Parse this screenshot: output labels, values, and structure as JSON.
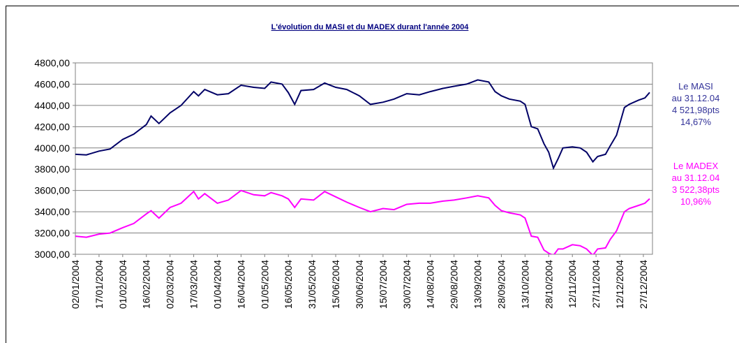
{
  "chart_data": {
    "type": "line",
    "title": "L'évolution du MASI et du MADEX durant l'année 2004",
    "x": [
      "02/01/2004",
      "09/01/2004",
      "17/01/2004",
      "24/01/2004",
      "01/02/2004",
      "08/02/2004",
      "16/02/2004",
      "19/02/2004",
      "24/02/2004",
      "02/03/2004",
      "09/03/2004",
      "17/03/2004",
      "20/03/2004",
      "24/03/2004",
      "01/04/2004",
      "08/04/2004",
      "16/04/2004",
      "24/04/2004",
      "01/05/2004",
      "05/05/2004",
      "12/05/2004",
      "16/05/2004",
      "20/05/2004",
      "24/05/2004",
      "01/06/2004",
      "08/06/2004",
      "15/06/2004",
      "22/06/2004",
      "30/06/2004",
      "07/07/2004",
      "15/07/2004",
      "22/07/2004",
      "30/07/2004",
      "07/08/2004",
      "14/08/2004",
      "22/08/2004",
      "29/08/2004",
      "06/09/2004",
      "13/09/2004",
      "20/09/2004",
      "24/09/2004",
      "28/09/2004",
      "03/10/2004",
      "10/10/2004",
      "13/10/2004",
      "17/10/2004",
      "21/10/2004",
      "25/10/2004",
      "28/10/2004",
      "31/10/2004",
      "03/11/2004",
      "06/11/2004",
      "12/11/2004",
      "17/11/2004",
      "21/11/2004",
      "25/11/2004",
      "28/11/2004",
      "03/12/2004",
      "06/12/2004",
      "10/12/2004",
      "15/12/2004",
      "18/12/2004",
      "24/12/2004",
      "28/12/2004",
      "31/12/2004"
    ],
    "series": [
      {
        "name": "MASI",
        "color": "#000066",
        "values": [
          3940,
          3935,
          3970,
          3990,
          4080,
          4130,
          4220,
          4300,
          4230,
          4330,
          4400,
          4530,
          4490,
          4550,
          4500,
          4510,
          4590,
          4570,
          4560,
          4620,
          4600,
          4520,
          4410,
          4540,
          4550,
          4610,
          4570,
          4550,
          4490,
          4410,
          4430,
          4460,
          4510,
          4500,
          4530,
          4560,
          4580,
          4600,
          4640,
          4620,
          4530,
          4490,
          4460,
          4440,
          4410,
          4200,
          4180,
          4040,
          3960,
          3810,
          3900,
          4000,
          4010,
          4000,
          3960,
          3870,
          3920,
          3940,
          4020,
          4120,
          4380,
          4410,
          4450,
          4470,
          4522
        ]
      },
      {
        "name": "MADEX",
        "color": "#ff00ff",
        "values": [
          3170,
          3160,
          3190,
          3200,
          3250,
          3290,
          3380,
          3410,
          3340,
          3440,
          3480,
          3590,
          3520,
          3570,
          3480,
          3510,
          3600,
          3560,
          3550,
          3580,
          3550,
          3520,
          3440,
          3520,
          3510,
          3590,
          3540,
          3490,
          3440,
          3400,
          3430,
          3420,
          3470,
          3480,
          3480,
          3500,
          3510,
          3530,
          3550,
          3530,
          3460,
          3410,
          3390,
          3370,
          3340,
          3170,
          3160,
          3040,
          3010,
          2990,
          3050,
          3050,
          3090,
          3080,
          3050,
          2990,
          3050,
          3060,
          3140,
          3220,
          3400,
          3430,
          3460,
          3480,
          3522
        ]
      }
    ],
    "annotations": [
      {
        "color": "#333399",
        "lines": [
          "Le MASI",
          "au 31.12.04",
          "4 521,98pts",
          "14,67%"
        ]
      },
      {
        "color": "#ff00ff",
        "lines": [
          "Le MADEX",
          "au 31.12.04",
          "3 522,38pts",
          "10,96%"
        ]
      }
    ],
    "xlim": [
      "02/01/2004",
      "31/12/2004"
    ],
    "xticks": [
      "02/01/2004",
      "17/01/2004",
      "01/02/2004",
      "16/02/2004",
      "02/03/2004",
      "17/03/2004",
      "01/04/2004",
      "16/04/2004",
      "01/05/2004",
      "16/05/2004",
      "31/05/2004",
      "15/06/2004",
      "30/06/2004",
      "15/07/2004",
      "30/07/2004",
      "14/08/2004",
      "29/08/2004",
      "13/09/2004",
      "28/09/2004",
      "13/10/2004",
      "28/10/2004",
      "12/11/2004",
      "27/11/2004",
      "12/12/2004",
      "27/12/2004"
    ],
    "ylim": [
      3000,
      4800
    ],
    "yticks": [
      {
        "value": 3000,
        "label": "3000,00"
      },
      {
        "value": 3200,
        "label": "3200,00"
      },
      {
        "value": 3400,
        "label": "3400,00"
      },
      {
        "value": 3600,
        "label": "3600,00"
      },
      {
        "value": 3800,
        "label": "3800,00"
      },
      {
        "value": 4000,
        "label": "4000,00"
      },
      {
        "value": 4200,
        "label": "4200,00"
      },
      {
        "value": 4400,
        "label": "4400,00"
      },
      {
        "value": 4600,
        "label": "4600,00"
      },
      {
        "value": 4800,
        "label": "4800,00"
      }
    ],
    "grid": true
  }
}
